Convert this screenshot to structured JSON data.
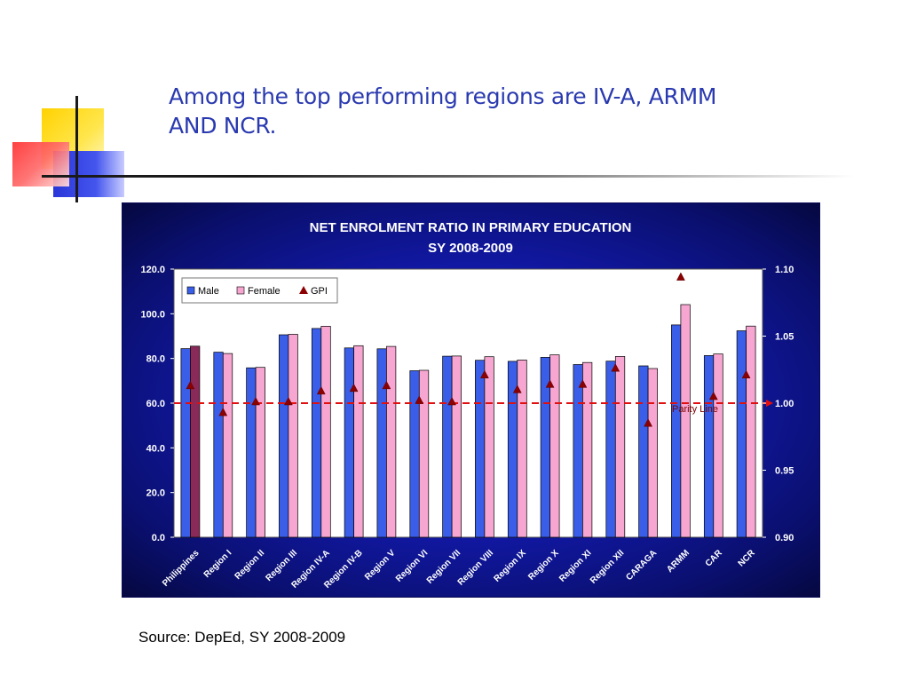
{
  "slide": {
    "title_line1": "Among the top performing regions are IV-A, ARMM",
    "title_line2": "AND NCR.",
    "source": "Source: DepEd, SY 2008-2009"
  },
  "colors": {
    "title": "#2a3ab0",
    "male": "#3a5ee8",
    "female": "#f6a6d0",
    "philippines_female": "#8a2a5a",
    "gpi": "#8b0000",
    "parity_line": "#e01010"
  },
  "chart_data": {
    "type": "bar",
    "title": "NET ENROLMENT RATIO IN PRIMARY EDUCATION",
    "subtitle": "SY 2008-2009",
    "categories": [
      "Philippines",
      "Region I",
      "Region II",
      "Region III",
      "Region IV-A",
      "Region IV-B",
      "Region V",
      "Region VI",
      "Region VII",
      "Region VIII",
      "Region IX",
      "Region X",
      "Region XI",
      "Region XII",
      "CARAGA",
      "ARMM",
      "CAR",
      "NCR"
    ],
    "series": [
      {
        "name": "Male",
        "axis": "left",
        "type": "bar",
        "values": [
          84.4,
          82.8,
          75.8,
          90.6,
          93.4,
          84.7,
          84.3,
          74.5,
          81.0,
          79.2,
          78.7,
          80.5,
          77.3,
          78.8,
          76.7,
          95.0,
          81.3,
          92.4
        ]
      },
      {
        "name": "Female",
        "axis": "left",
        "type": "bar",
        "values": [
          85.5,
          82.2,
          76.0,
          90.8,
          94.4,
          85.7,
          85.4,
          74.7,
          81.1,
          80.8,
          79.3,
          81.6,
          78.2,
          80.9,
          75.5,
          104.1,
          82.0,
          94.5
        ]
      },
      {
        "name": "GPI",
        "axis": "right",
        "type": "marker",
        "values": [
          1.013,
          0.993,
          1.001,
          1.001,
          1.009,
          1.011,
          1.013,
          1.002,
          1.001,
          1.021,
          1.01,
          1.014,
          1.014,
          1.026,
          0.985,
          1.094,
          1.005,
          1.021
        ]
      }
    ],
    "ylim_left": [
      0,
      120
    ],
    "ylim_right": [
      0.9,
      1.1
    ],
    "left_ticks": [
      "0.0",
      "20.0",
      "40.0",
      "60.0",
      "80.0",
      "100.0",
      "120.0"
    ],
    "right_ticks": [
      "0.90",
      "0.95",
      "1.00",
      "1.05",
      "1.10"
    ],
    "parity_line": {
      "value": 1.0,
      "label": "Parity Line"
    },
    "legend": {
      "placement": "top-left",
      "items": [
        "Male",
        "Female",
        "GPI"
      ]
    },
    "grid": false
  }
}
